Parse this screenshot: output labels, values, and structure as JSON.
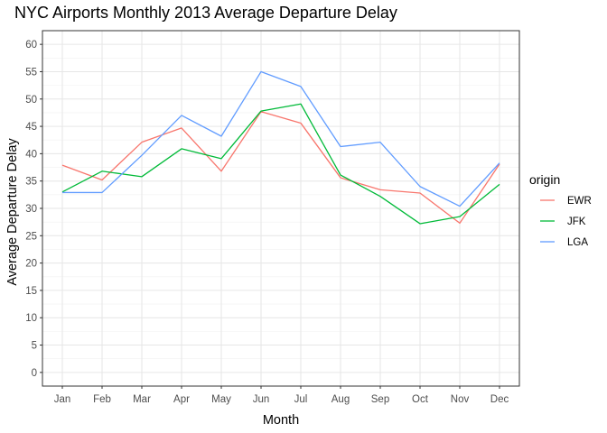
{
  "chart_data": {
    "type": "line",
    "title": "NYC Airports Monthly 2013 Average Departure Delay",
    "xlabel": "Month",
    "ylabel": "Average Departure Delay",
    "categories": [
      "Jan",
      "Feb",
      "Mar",
      "Apr",
      "May",
      "Jun",
      "Jul",
      "Aug",
      "Sep",
      "Oct",
      "Nov",
      "Dec"
    ],
    "yticks": [
      0,
      5,
      10,
      15,
      20,
      25,
      30,
      35,
      40,
      45,
      50,
      55,
      60
    ],
    "ylim": [
      -2.5,
      62.5
    ],
    "grid": true,
    "legend": {
      "title": "origin",
      "position": "right"
    },
    "series": [
      {
        "name": "EWR",
        "color": "#F8766D",
        "values": [
          37.9,
          35.2,
          42.1,
          44.7,
          36.8,
          47.7,
          45.6,
          35.6,
          33.4,
          32.8,
          27.3,
          38.1
        ]
      },
      {
        "name": "JFK",
        "color": "#00BA38",
        "values": [
          33.0,
          36.8,
          35.8,
          40.9,
          39.1,
          47.8,
          49.1,
          36.1,
          32.2,
          27.2,
          28.5,
          34.4
        ]
      },
      {
        "name": "LGA",
        "color": "#619CFF",
        "values": [
          32.9,
          32.9,
          39.7,
          47.0,
          43.2,
          55.0,
          52.3,
          41.3,
          42.1,
          34.0,
          30.4,
          38.3
        ]
      }
    ]
  }
}
